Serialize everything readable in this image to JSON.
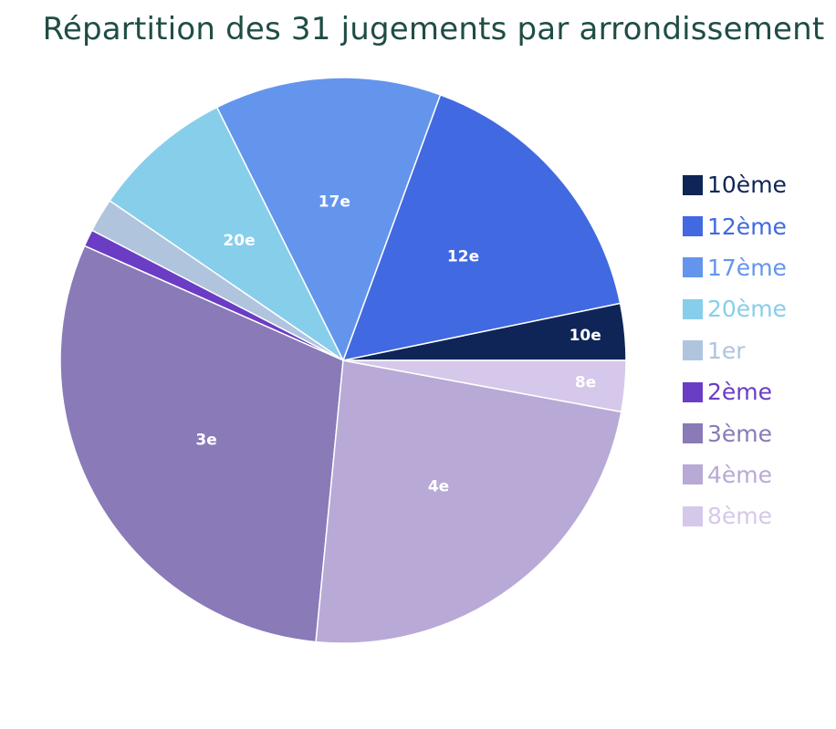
{
  "chart_data": {
    "type": "pie",
    "title": "Répartition des 31 jugements par arrondissement",
    "slices": [
      {
        "label": "10ème",
        "slice_label": "10e",
        "value": 1,
        "color": "#0f2557"
      },
      {
        "label": "12ème",
        "slice_label": "12e",
        "value": 5,
        "color": "#4169e1"
      },
      {
        "label": "17ème",
        "slice_label": "17e",
        "value": 4,
        "color": "#6495ed"
      },
      {
        "label": "20ème",
        "slice_label": "20e",
        "value": 2.5,
        "color": "#87ceeb"
      },
      {
        "label": "1er",
        "slice_label": "",
        "value": 0.6,
        "color": "#b0c4de"
      },
      {
        "label": "2ème",
        "slice_label": "",
        "value": 0.3,
        "color": "#6a3dc4"
      },
      {
        "label": "3ème",
        "slice_label": "3e",
        "value": 9.3,
        "color": "#8a7ab8"
      },
      {
        "label": "4ème",
        "slice_label": "4e",
        "value": 7.3,
        "color": "#b8a9d6"
      },
      {
        "label": "8ème",
        "slice_label": "8e",
        "value": 0.9,
        "color": "#d6c8ea"
      }
    ],
    "start_angle_deg": 0,
    "direction": "counterclockwise",
    "legend_position": "right"
  }
}
